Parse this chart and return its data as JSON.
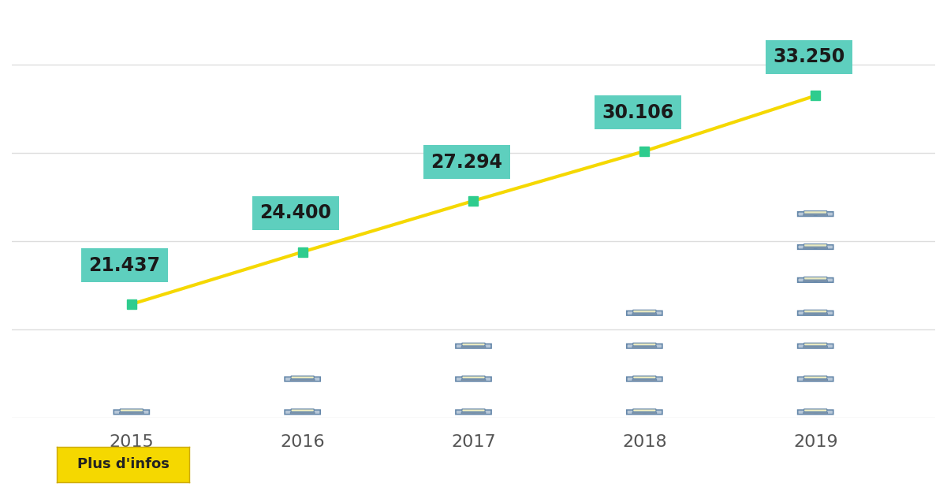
{
  "years": [
    2015,
    2016,
    2017,
    2018,
    2019
  ],
  "values": [
    21437,
    24400,
    27294,
    30106,
    33250
  ],
  "labels": [
    "21.437",
    "24.400",
    "27.294",
    "30.106",
    "33.250"
  ],
  "num_icons": [
    1,
    2,
    3,
    4,
    7
  ],
  "line_color": "#F5D800",
  "marker_color": "#2ECC8E",
  "label_bg_color": "#5ECFBE",
  "label_text_color": "#1a1a1a",
  "xlabel_color": "#555555",
  "background_color": "#FFFFFF",
  "grid_color": "#DDDDDD",
  "button_bg": "#F5D800",
  "button_text": "Plus d'infos",
  "ylabel_min": 0,
  "ylabel_max": 40000,
  "icon_color_body": "#B8C8D8",
  "icon_color_screen": "#E8E8C0",
  "icon_color_border": "#6688AA"
}
